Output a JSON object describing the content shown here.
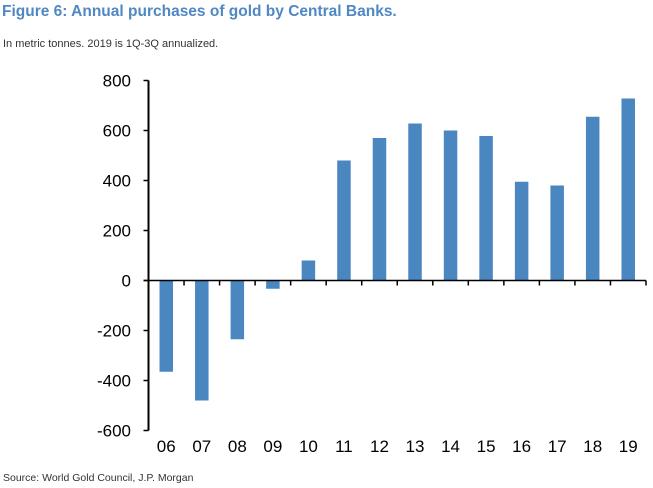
{
  "title": "Figure 6: Annual purchases of gold by Central Banks.",
  "subtitle": "In metric tonnes. 2019 is 1Q-3Q annualized.",
  "source": "Source: World Gold Council, J.P. Morgan",
  "colors": {
    "title": "#4f88c4",
    "bar": "#4a86c0",
    "axis": "#000000"
  },
  "chart_data": {
    "type": "bar",
    "title": "Figure 6: Annual purchases of gold by Central Banks.",
    "subtitle": "In metric tonnes. 2019 is 1Q-3Q annualized.",
    "xlabel": "",
    "ylabel": "",
    "categories": [
      "06",
      "07",
      "08",
      "09",
      "10",
      "11",
      "12",
      "13",
      "14",
      "15",
      "16",
      "17",
      "18",
      "19"
    ],
    "values": [
      -365,
      -480,
      -235,
      -33,
      80,
      480,
      570,
      628,
      600,
      578,
      395,
      380,
      655,
      728
    ],
    "ylim": [
      -600,
      800
    ],
    "yticks": [
      "800",
      "600",
      "400",
      "200",
      "0",
      "-200",
      "-400",
      "-600"
    ],
    "grid": false,
    "legend": "none"
  }
}
